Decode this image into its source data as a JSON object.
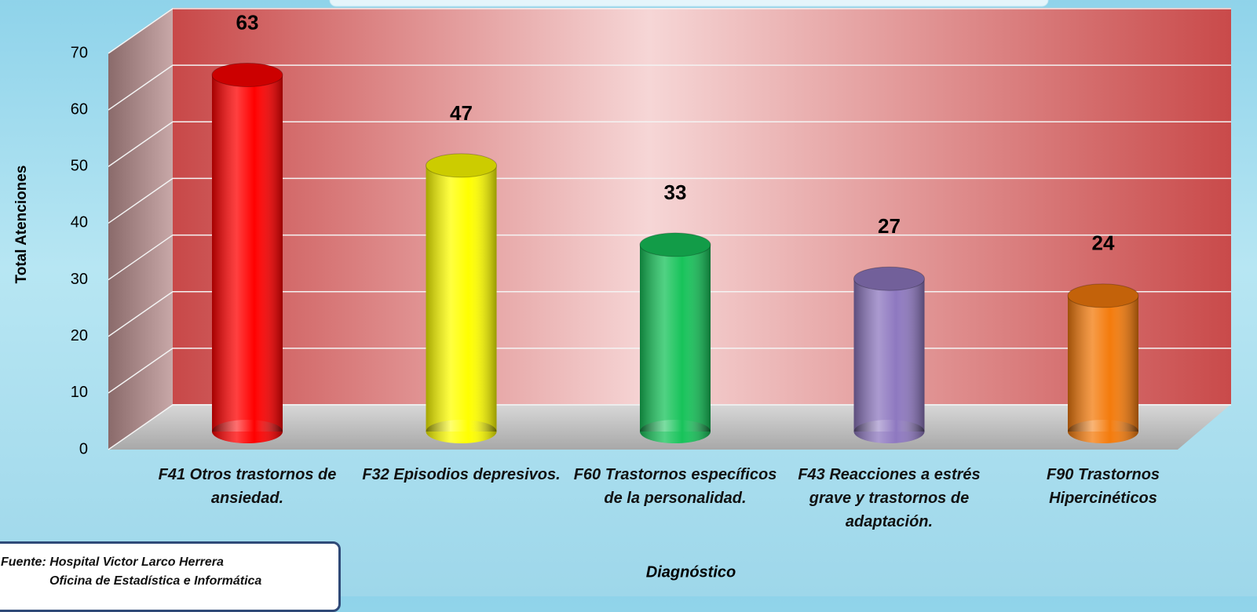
{
  "chart_data": {
    "type": "bar",
    "categories": [
      "F41 Otros trastornos de ansiedad.",
      "F32 Episodios depresivos.",
      "F60 Trastornos específicos de la personalidad.",
      "F43 Reacciones a estrés grave y trastornos de adaptación.",
      "F90 Trastornos Hipercinéticos"
    ],
    "values": [
      63,
      47,
      33,
      27,
      24
    ],
    "colors": [
      "#ff0000",
      "#ffff00",
      "#17c35a",
      "#8e78c0",
      "#f47b0c"
    ],
    "ylim": [
      0,
      70
    ],
    "yticks": [
      0,
      10,
      20,
      30,
      40,
      50,
      60,
      70
    ],
    "grid": true,
    "xlabel": "Diagnóstico",
    "ylabel": "Total Atenciones",
    "source": [
      "Fuente:  Hospital Victor Larco Herrera",
      "Oficina de Estadística e Informática"
    ]
  }
}
